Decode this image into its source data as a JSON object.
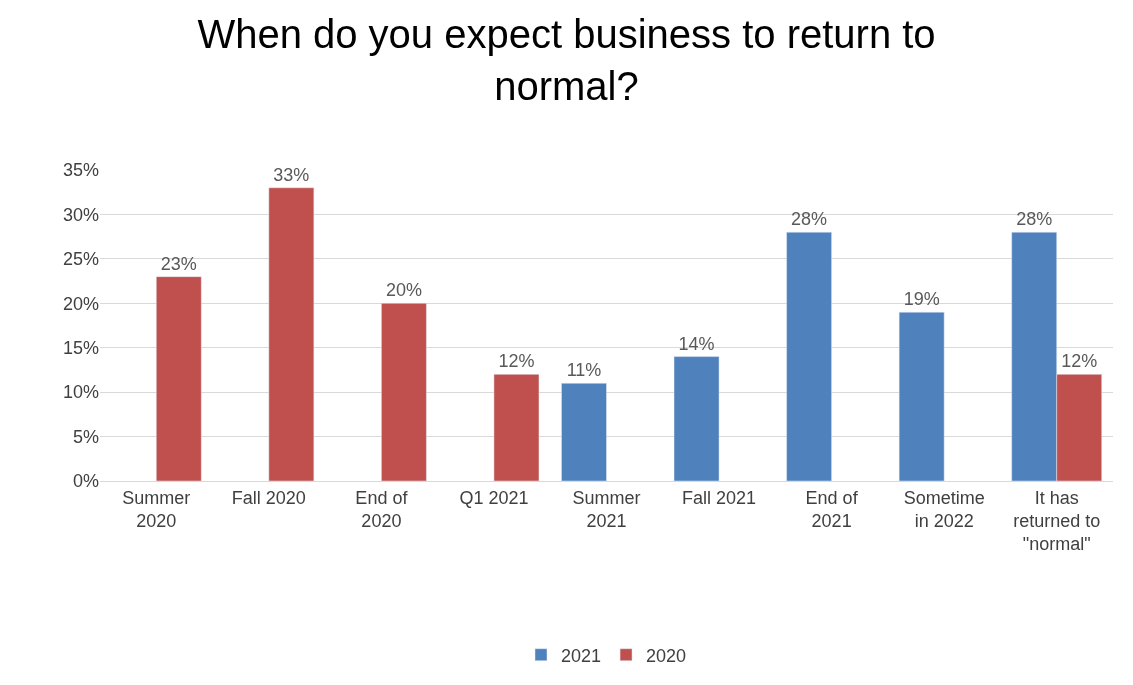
{
  "chart_data": {
    "type": "bar",
    "title": "When do you expect business to return to\nnormal?",
    "categories": [
      "Summer\n2020",
      "Fall 2020",
      "End of\n2020",
      "Q1 2021",
      "Summer\n2021",
      "Fall 2021",
      "End of\n2021",
      "Sometime\nin 2022",
      "It has\nreturned to\n\"normal\""
    ],
    "series": [
      {
        "name": "2021",
        "color": "#4f81bd",
        "values": [
          null,
          null,
          null,
          null,
          11,
          14,
          28,
          19,
          28
        ],
        "value_labels": [
          null,
          null,
          null,
          null,
          "11%",
          "14%",
          "28%",
          "19%",
          "28%"
        ]
      },
      {
        "name": "2020",
        "color": "#c0504d",
        "values": [
          23,
          33,
          20,
          12,
          null,
          null,
          null,
          null,
          12
        ],
        "value_labels": [
          "23%",
          "33%",
          "20%",
          "12%",
          null,
          null,
          null,
          null,
          "12%"
        ]
      }
    ],
    "ylim": [
      0,
      35
    ],
    "yticks": [
      {
        "value": 0,
        "label": "0%"
      },
      {
        "value": 5,
        "label": "5%"
      },
      {
        "value": 10,
        "label": "10%"
      },
      {
        "value": 15,
        "label": "15%"
      },
      {
        "value": 20,
        "label": "20%"
      },
      {
        "value": 25,
        "label": "25%"
      },
      {
        "value": 30,
        "label": "30%"
      },
      {
        "value": 35,
        "label": "35%"
      }
    ],
    "grid": "y",
    "legend": "bottom"
  }
}
